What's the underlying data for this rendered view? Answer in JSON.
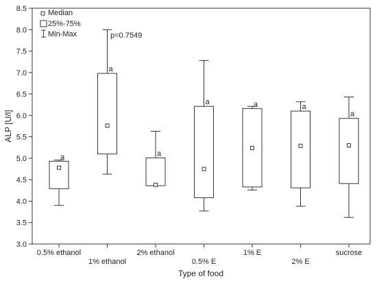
{
  "chart_data": {
    "type": "boxplot",
    "xlabel": "Type of food",
    "ylabel": "ALP [U/l]",
    "ylim": [
      3.0,
      8.5
    ],
    "yticks": [
      3.0,
      3.5,
      4.0,
      4.5,
      5.0,
      5.5,
      6.0,
      6.5,
      7.0,
      7.5,
      8.0,
      8.5
    ],
    "ytick_labels": [
      "3.0",
      "3.5",
      "4.0",
      "4.5",
      "5.0",
      "5.5",
      "6.0",
      "6.5",
      "7.0",
      "7.5",
      "8.0",
      "8.5"
    ],
    "grid": false,
    "legend_position": "top-left",
    "legend": {
      "median": "Median",
      "box": "25%-75%",
      "whisker": "Min-Max"
    },
    "annotation": "p=0.7549",
    "categories": [
      "0.5% ethanol",
      "1% ethanol",
      "2% ethanol",
      "0.5% E",
      "1% E",
      "2% E",
      "sucrose"
    ],
    "label_rows": [
      "upper",
      "lower",
      "upper",
      "lower",
      "upper",
      "lower",
      "upper"
    ],
    "groups": [
      {
        "median": 4.78,
        "q1": 4.29,
        "q3": 4.93,
        "min": 3.9,
        "max": 4.96,
        "letter": "a"
      },
      {
        "median": 5.76,
        "q1": 5.1,
        "q3": 6.98,
        "min": 4.63,
        "max": 8.0,
        "letter": "a"
      },
      {
        "median": 4.38,
        "q1": 4.36,
        "q3": 5.01,
        "min": 4.36,
        "max": 5.63,
        "letter": "a"
      },
      {
        "median": 4.75,
        "q1": 4.08,
        "q3": 6.21,
        "min": 3.77,
        "max": 7.28,
        "letter": "a"
      },
      {
        "median": 5.24,
        "q1": 4.33,
        "q3": 6.16,
        "min": 4.26,
        "max": 6.21,
        "letter": "a"
      },
      {
        "median": 5.29,
        "q1": 4.31,
        "q3": 6.1,
        "min": 3.88,
        "max": 6.32,
        "letter": "a"
      },
      {
        "median": 5.3,
        "q1": 4.41,
        "q3": 5.93,
        "min": 3.62,
        "max": 6.43,
        "letter": "a"
      }
    ]
  }
}
